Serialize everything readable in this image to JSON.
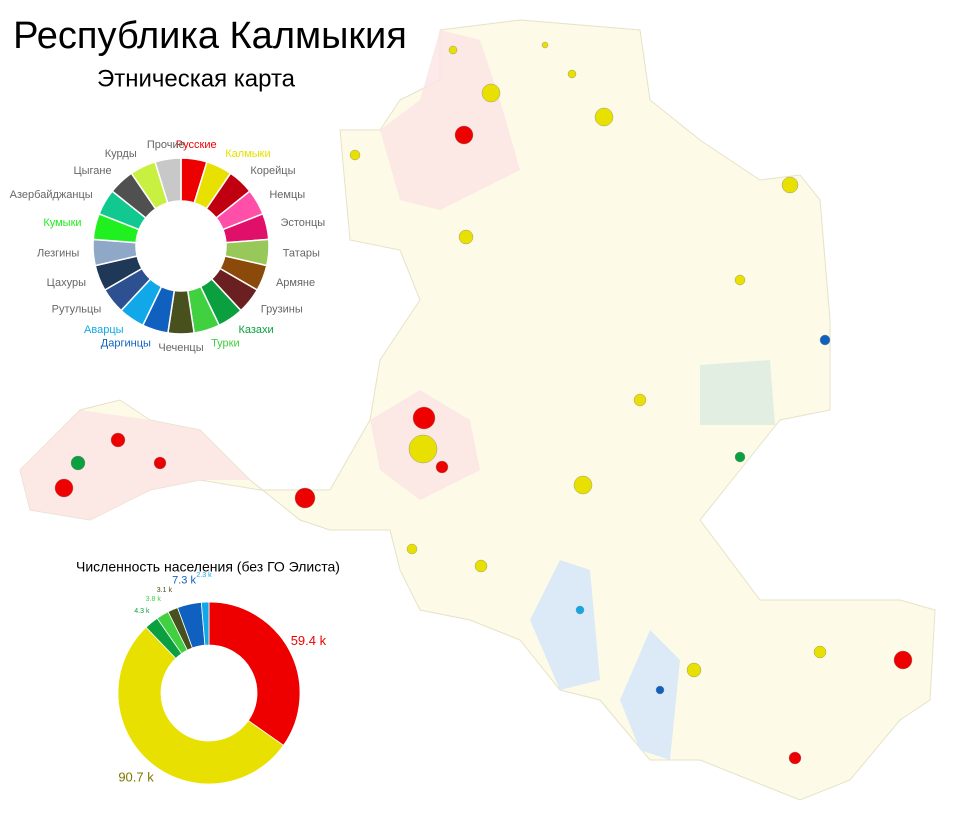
{
  "header": {
    "title": "Республика Калмыкия",
    "subtitle": "Этническая карта"
  },
  "legend": {
    "groups": [
      {
        "name": "Русские",
        "color": "#ee0000"
      },
      {
        "name": "Калмыки",
        "color": "#e8e000"
      },
      {
        "name": "Корейцы",
        "color": "#c00010"
      },
      {
        "name": "Немцы",
        "color": "#ff4fa8"
      },
      {
        "name": "Эстонцы",
        "color": "#e0106a"
      },
      {
        "name": "Татары",
        "color": "#98c85a"
      },
      {
        "name": "Армяне",
        "color": "#8b4a0a"
      },
      {
        "name": "Грузины",
        "color": "#6a2020"
      },
      {
        "name": "Казахи",
        "color": "#0aa040"
      },
      {
        "name": "Турки",
        "color": "#40d040"
      },
      {
        "name": "Чеченцы",
        "color": "#48501e"
      },
      {
        "name": "Даргинцы",
        "color": "#1060c0"
      },
      {
        "name": "Аварцы",
        "color": "#10a8e8"
      },
      {
        "name": "Рутульцы",
        "color": "#2c5090"
      },
      {
        "name": "Цахуры",
        "color": "#203858"
      },
      {
        "name": "Лезгины",
        "color": "#90a8c8"
      },
      {
        "name": "Кумыки",
        "color": "#20f020"
      },
      {
        "name": "Азербайджанцы",
        "color": "#10c890"
      },
      {
        "name": "Цыгане",
        "color": "#505050"
      },
      {
        "name": "Курды",
        "color": "#c8f040"
      },
      {
        "name": "Прочие",
        "color": "#c8c8c8"
      }
    ]
  },
  "chart_data": {
    "type": "pie",
    "title": "Численность населения (без ГО Элиста)",
    "categories": [
      "Русские",
      "Калмыки",
      "Казахи",
      "Турки",
      "Чеченцы",
      "Даргинцы",
      "Аварцы"
    ],
    "values": [
      59.4,
      90.7,
      4.3,
      3.8,
      3.1,
      7.3,
      2.3
    ],
    "value_labels": [
      "59.4 k",
      "90.7 k",
      "4.3 k",
      "3.8 k",
      "3.1 k",
      "7.3 k",
      "2.3 k"
    ],
    "colors": [
      "#ee0000",
      "#e8e000",
      "#0aa040",
      "#40d040",
      "#48501e",
      "#1060c0",
      "#10a8e8"
    ]
  }
}
